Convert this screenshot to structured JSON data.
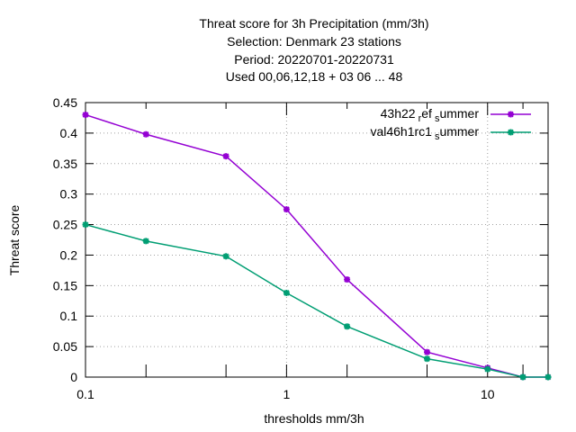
{
  "chart_data": {
    "type": "line",
    "title_lines": [
      "Threat score  for 3h Precipitation (mm/3h)",
      "Selection: Denmark     23 stations",
      "Period: 20220701-20220731",
      "Used  00,06,12,18  + 03 06 ... 48"
    ],
    "xlabel": "thresholds mm/3h",
    "ylabel": "Threat score",
    "x_scale": "log",
    "xlim": [
      0.1,
      20
    ],
    "ylim": [
      0,
      0.45
    ],
    "x_ticks": [
      {
        "value": 0.1,
        "label": "0.1"
      },
      {
        "value": 1,
        "label": "1"
      },
      {
        "value": 10,
        "label": "10"
      }
    ],
    "x_minor_ticks": [
      0.2,
      0.5,
      2,
      5,
      15,
      20
    ],
    "y_ticks": [
      {
        "value": 0,
        "label": "0"
      },
      {
        "value": 0.05,
        "label": "0.05"
      },
      {
        "value": 0.1,
        "label": "0.1"
      },
      {
        "value": 0.15,
        "label": "0.15"
      },
      {
        "value": 0.2,
        "label": "0.2"
      },
      {
        "value": 0.25,
        "label": "0.25"
      },
      {
        "value": 0.3,
        "label": "0.3"
      },
      {
        "value": 0.35,
        "label": "0.35"
      },
      {
        "value": 0.4,
        "label": "0.4"
      },
      {
        "value": 0.45,
        "label": "0.45"
      }
    ],
    "grid": true,
    "legend_position": "top-right",
    "series": [
      {
        "name": "43h22 ref summer",
        "name_parts": [
          "43h22",
          "r",
          "ef",
          "s",
          "ummer"
        ],
        "color": "#9400d3",
        "x": [
          0.1,
          0.2,
          0.5,
          1,
          2,
          5,
          10,
          15,
          20
        ],
        "y": [
          0.43,
          0.398,
          0.362,
          0.275,
          0.16,
          0.041,
          0.015,
          0.0,
          0.0
        ]
      },
      {
        "name": "val46h1rc1 summer",
        "name_parts": [
          "val46h1rc1",
          "s",
          "ummer"
        ],
        "color": "#009e73",
        "x": [
          0.1,
          0.2,
          0.5,
          1,
          2,
          5,
          10,
          15,
          20
        ],
        "y": [
          0.25,
          0.223,
          0.198,
          0.138,
          0.083,
          0.03,
          0.013,
          0.0,
          0.0
        ]
      }
    ]
  }
}
